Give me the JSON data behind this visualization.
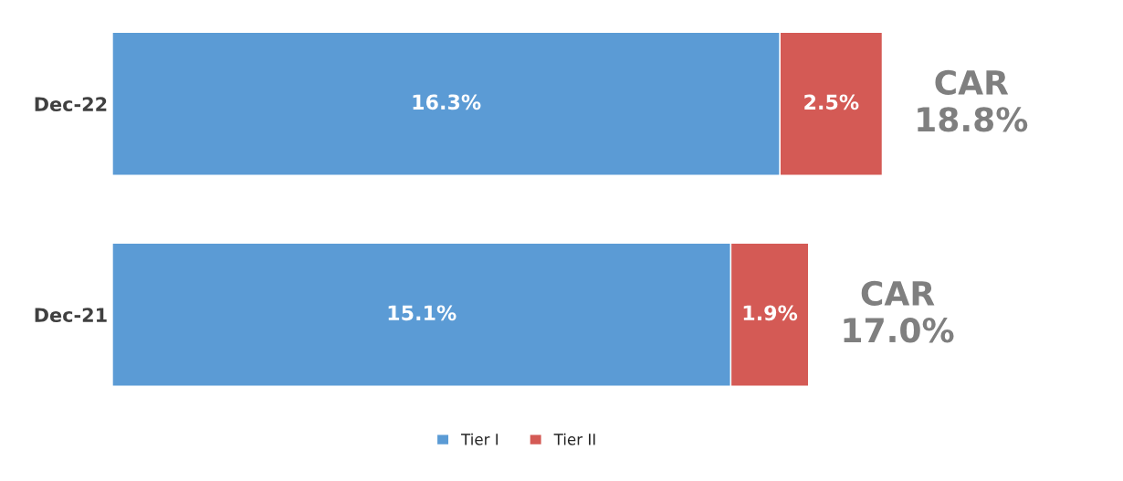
{
  "chart_data": {
    "type": "bar",
    "orientation": "horizontal",
    "stacked": true,
    "categories": [
      "Dec-22",
      "Dec-21"
    ],
    "series": [
      {
        "name": "Tier I",
        "color": "#5b9bd5",
        "values": [
          16.3,
          15.1
        ],
        "value_labels": [
          "16.3%",
          "15.1%"
        ]
      },
      {
        "name": "Tier II",
        "color": "#d45a55",
        "values": [
          2.5,
          1.9
        ],
        "value_labels": [
          "2.5%",
          "1.9%"
        ]
      }
    ],
    "totals": [
      "CAR\n18.8%",
      "CAR\n17.0%"
    ],
    "legend": "bottom",
    "tick_labels": "y"
  }
}
